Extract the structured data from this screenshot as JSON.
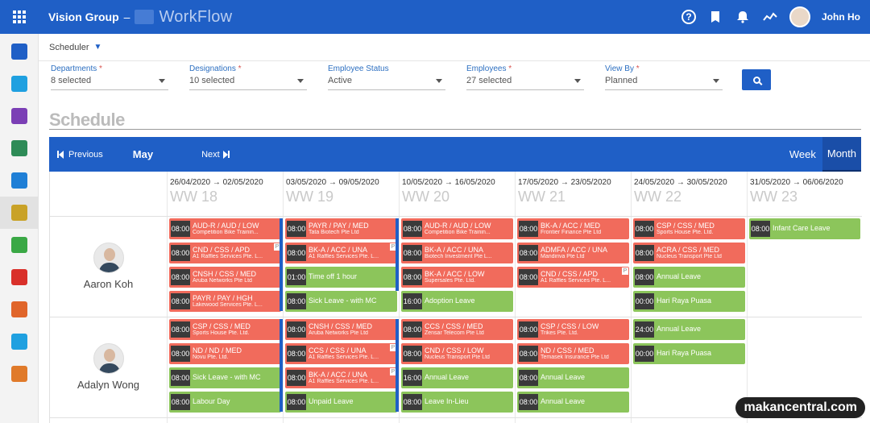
{
  "topbar": {
    "org": "Vision Group",
    "dash": "–",
    "product": "WorkFlow",
    "user": "John Ho",
    "help_glyph": "?"
  },
  "sidebar": {
    "items": [
      {
        "icon": "dashboard-icon",
        "color": "#1f5fc6"
      },
      {
        "icon": "folder-icon",
        "color": "#1fa0e0"
      },
      {
        "icon": "user-icon",
        "color": "#7b3fb5"
      },
      {
        "icon": "sheet-icon",
        "color": "#2e8b57"
      },
      {
        "icon": "document-icon",
        "color": "#1f7fd6"
      },
      {
        "icon": "schedule-icon",
        "color": "#c9a227",
        "active": true
      },
      {
        "icon": "clock-icon",
        "color": "#3aa845"
      },
      {
        "icon": "route-icon",
        "color": "#d9302a"
      },
      {
        "icon": "power-icon",
        "color": "#e0652a"
      },
      {
        "icon": "cloud-icon",
        "color": "#1fa0e0"
      },
      {
        "icon": "headset-icon",
        "color": "#e07a2a"
      }
    ]
  },
  "breadcrumb": "Scheduler",
  "filters": [
    {
      "label": "Departments",
      "required": true,
      "value": "8 selected"
    },
    {
      "label": "Designations",
      "required": true,
      "value": "10 selected"
    },
    {
      "label": "Employee Status",
      "required": false,
      "value": "Active"
    },
    {
      "label": "Employees",
      "required": true,
      "value": "27 selected"
    },
    {
      "label": "View By",
      "required": true,
      "value": "Planned"
    }
  ],
  "schedule_title": "Schedule",
  "nav": {
    "previous": "Previous",
    "month": "May",
    "next": "Next",
    "week": "Week",
    "month_view": "Month"
  },
  "weeks": [
    {
      "range": "26/04/2020 → 02/05/2020",
      "ww": "WW 18"
    },
    {
      "range": "03/05/2020 → 09/05/2020",
      "ww": "WW 19"
    },
    {
      "range": "10/05/2020 → 16/05/2020",
      "ww": "WW 20"
    },
    {
      "range": "17/05/2020 → 23/05/2020",
      "ww": "WW 21"
    },
    {
      "range": "24/05/2020 → 30/05/2020",
      "ww": "WW 22"
    },
    {
      "range": "31/05/2020 → 06/06/2020",
      "ww": "WW 23"
    }
  ],
  "employees": [
    {
      "name": "Aaron Koh",
      "weeks": [
        [
          {
            "time": "08:00",
            "title": "AUD-R / AUD / LOW",
            "sub": "Competition Bike Trainin...",
            "color": "red"
          },
          {
            "time": "08:00",
            "title": "CND / CSS / APD",
            "sub": "A1 Raffles Services Pte. L...",
            "color": "red",
            "p": true
          },
          {
            "time": "08:00",
            "title": "CNSH / CSS / MED",
            "sub": "Aruba Networks Pte Ltd",
            "color": "red"
          },
          {
            "time": "08:00",
            "title": "PAYR / PAY / HGH",
            "sub": "Lakewood Services Pte. L...",
            "color": "red"
          }
        ],
        [
          {
            "time": "08:00",
            "title": "PAYR / PAY / MED",
            "sub": "Tata Biotech Pte Ltd",
            "color": "red"
          },
          {
            "time": "08:00",
            "title": "BK-A / ACC / UNA",
            "sub": "A1 Raffles Services Pte. L...",
            "color": "red",
            "p": true
          },
          {
            "time": "01:00",
            "title": "Time off 1 hour",
            "sub": "",
            "color": "green"
          },
          {
            "time": "08:00",
            "title": "Sick Leave - with MC",
            "sub": "",
            "color": "green"
          }
        ],
        [
          {
            "time": "08:00",
            "title": "AUD-R / AUD / LOW",
            "sub": "Competition Bike Trainin...",
            "color": "red"
          },
          {
            "time": "08:00",
            "title": "BK-A / ACC / UNA",
            "sub": "Biotech Investment Pte L...",
            "color": "red"
          },
          {
            "time": "08:00",
            "title": "BK-A / ACC / LOW",
            "sub": "Supersales Pte. Ltd.",
            "color": "red"
          },
          {
            "time": "16:00",
            "title": "Adoption Leave",
            "sub": "",
            "color": "green"
          }
        ],
        [
          {
            "time": "08:00",
            "title": "BK-A / ACC / MED",
            "sub": "Frontier Finance Pte Ltd",
            "color": "red"
          },
          {
            "time": "08:00",
            "title": "ADMFA / ACC / UNA",
            "sub": "Mandiriva Pte Ltd",
            "color": "red"
          },
          {
            "time": "08:00",
            "title": "CND / CSS / APD",
            "sub": "A1 Raffles Services Pte. L...",
            "color": "red",
            "p": true
          }
        ],
        [
          {
            "time": "08:00",
            "title": "CSP / CSS / MED",
            "sub": "Sports House Pte. Ltd.",
            "color": "red"
          },
          {
            "time": "08:00",
            "title": "ACRA / CSS / MED",
            "sub": "Nucleus Transport Pte Ltd",
            "color": "red"
          },
          {
            "time": "08:00",
            "title": "Annual Leave",
            "sub": "",
            "color": "green"
          },
          {
            "time": "00:00",
            "title": "Hari Raya Puasa",
            "sub": "",
            "color": "green"
          }
        ],
        [
          {
            "time": "08:00",
            "title": "Infant Care Leave",
            "sub": "",
            "color": "green"
          }
        ]
      ]
    },
    {
      "name": "Adalyn Wong",
      "weeks": [
        [
          {
            "time": "08:00",
            "title": "CSP / CSS / MED",
            "sub": "Sports House Pte. Ltd.",
            "color": "red"
          },
          {
            "time": "08:00",
            "title": "ND / ND / MED",
            "sub": "Novu Pte. Ltd.",
            "color": "red"
          },
          {
            "time": "08:00",
            "title": "Sick Leave - with MC",
            "sub": "",
            "color": "green"
          },
          {
            "time": "08:00",
            "title": "Labour Day",
            "sub": "",
            "color": "green"
          }
        ],
        [
          {
            "time": "08:00",
            "title": "CNSH / CSS / MED",
            "sub": "Aruba Networks Pte Ltd",
            "color": "red"
          },
          {
            "time": "08:00",
            "title": "CCS / CSS / UNA",
            "sub": "A1 Raffles Services Pte. L...",
            "color": "red",
            "p": true
          },
          {
            "time": "08:00",
            "title": "BK-A / ACC / UNA",
            "sub": "A1 Raffles Services Pte. L...",
            "color": "red",
            "p": true
          },
          {
            "time": "08:00",
            "title": "Unpaid Leave",
            "sub": "",
            "color": "green"
          }
        ],
        [
          {
            "time": "08:00",
            "title": "CCS / CSS / MED",
            "sub": "Zensar Telecom Pte Ltd",
            "color": "red"
          },
          {
            "time": "08:00",
            "title": "CND / CSS / LOW",
            "sub": "Nucleus Transport Pte Ltd",
            "color": "red"
          },
          {
            "time": "16:00",
            "title": "Annual Leave",
            "sub": "",
            "color": "green"
          },
          {
            "time": "08:00",
            "title": "Leave In-Lieu",
            "sub": "",
            "color": "green"
          }
        ],
        [
          {
            "time": "08:00",
            "title": "CSP / CSS / LOW",
            "sub": "Trikes Pte. Ltd.",
            "color": "red"
          },
          {
            "time": "08:00",
            "title": "ND / CSS / MED",
            "sub": "Temasek Insurance Pte Ltd",
            "color": "red"
          },
          {
            "time": "08:00",
            "title": "Annual Leave",
            "sub": "",
            "color": "green"
          },
          {
            "time": "08:00",
            "title": "Annual Leave",
            "sub": "",
            "color": "green"
          }
        ],
        [
          {
            "time": "24:00",
            "title": "Annual Leave",
            "sub": "",
            "color": "green"
          },
          {
            "time": "00:00",
            "title": "Hari Raya Puasa",
            "sub": "",
            "color": "green"
          }
        ],
        []
      ]
    }
  ],
  "watermark": "makancentral.com"
}
